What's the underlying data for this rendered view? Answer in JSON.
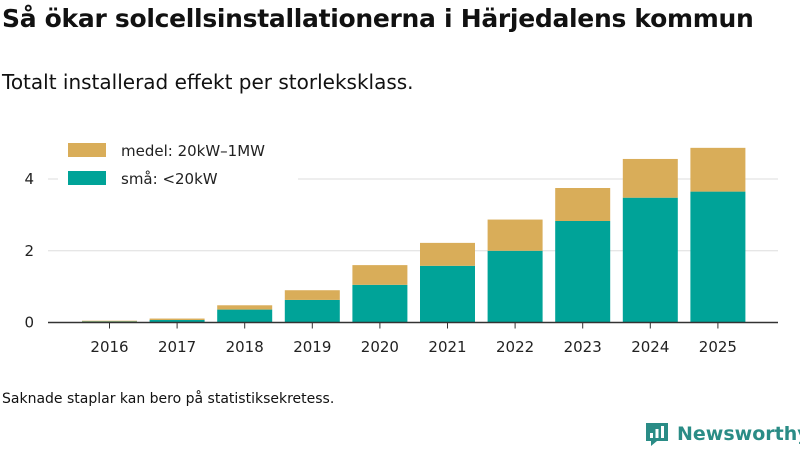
{
  "title": "Så ökar solcellsinstallationerna i Härjedalens kommun",
  "subtitle": "Totalt installerad effekt per storleksklass.",
  "footnote": "Saknade staplar kan bero på statistiksekretess.",
  "brand": {
    "name": "Newsworthy"
  },
  "colors": {
    "small": "#00a398",
    "medium": "#d9ad59",
    "grid": "#dddddd",
    "axis": "#333333"
  },
  "chart_data": {
    "type": "bar",
    "stacked": true,
    "title": "Så ökar solcellsinstallationerna i Härjedalens kommun",
    "subtitle": "Totalt installerad effekt per storleksklass.",
    "xlabel": "",
    "ylabel": "",
    "ylim": [
      0,
      5.2
    ],
    "yticks": [
      0,
      2,
      4
    ],
    "grid": true,
    "legend_position": "top-left",
    "categories": [
      "2016",
      "2017",
      "2018",
      "2019",
      "2020",
      "2021",
      "2022",
      "2023",
      "2024",
      "2025"
    ],
    "series": [
      {
        "name": "små: <20kW",
        "values": [
          0.03,
          0.07,
          0.36,
          0.63,
          1.05,
          1.58,
          2.0,
          2.83,
          3.48,
          3.65
        ]
      },
      {
        "name": "medel: 20kW–1MW",
        "values": [
          0.02,
          0.04,
          0.12,
          0.27,
          0.55,
          0.64,
          0.87,
          0.92,
          1.08,
          1.22
        ]
      }
    ]
  }
}
